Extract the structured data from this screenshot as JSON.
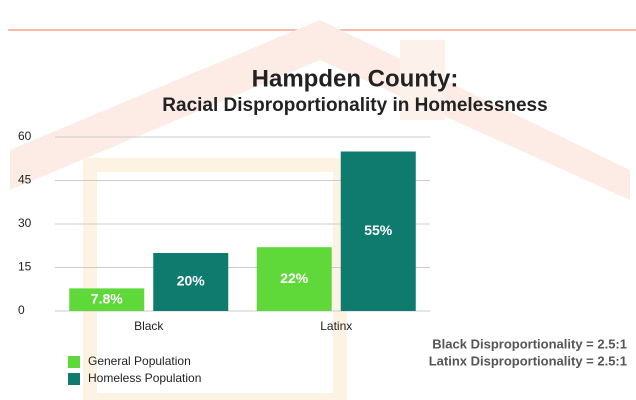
{
  "chart_data": {
    "type": "bar",
    "title": "Hampden County:",
    "subtitle": "Racial Disproportionality in Homelessness",
    "categories": [
      "Black",
      "Latinx"
    ],
    "series": [
      {
        "name": "General Population",
        "color": "#5fd83a",
        "values": [
          7.8,
          22
        ],
        "value_labels": [
          "7.8%",
          "22%"
        ]
      },
      {
        "name": "Homeless Population",
        "color": "#0f7a6e",
        "values": [
          20,
          55
        ],
        "value_labels": [
          "20%",
          "55%"
        ]
      }
    ],
    "ylim": [
      0,
      60
    ],
    "yticks": [
      0,
      15,
      30,
      45,
      60
    ],
    "grid": true,
    "legend": "bottom-left",
    "annotations": [
      "Black Disproportionality = 2.5:1",
      "Latinx Disproportionality = 2.5:1"
    ]
  }
}
